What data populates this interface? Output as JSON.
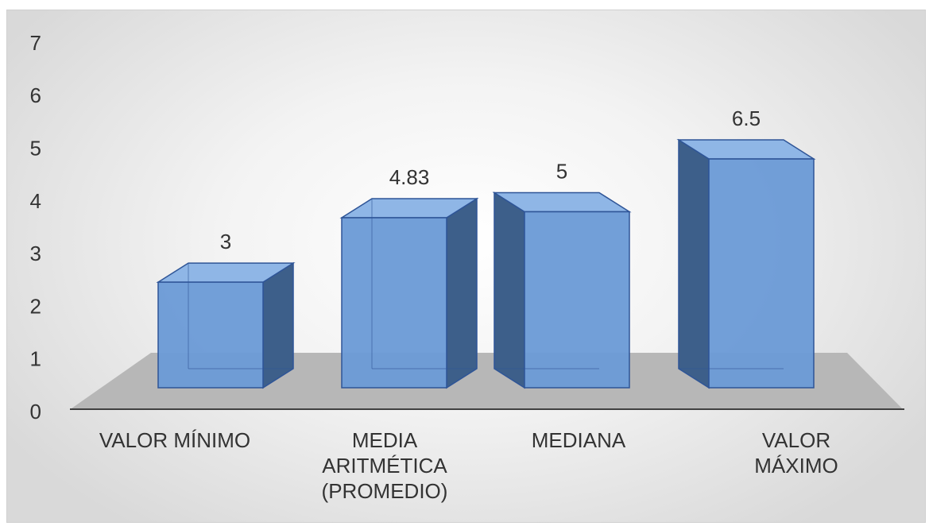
{
  "chart_data": {
    "type": "bar",
    "categories": [
      [
        "VALOR MÍNIMO"
      ],
      [
        "MEDIA",
        "ARITMÉTICA",
        "(PROMEDIO)"
      ],
      [
        "MEDIANA"
      ],
      [
        "VALOR",
        "MÁXIMO"
      ]
    ],
    "values": [
      3,
      4.83,
      5,
      6.5
    ],
    "data_labels": [
      "3",
      "4.83",
      "5",
      "6.5"
    ],
    "title": "",
    "xlabel": "",
    "ylabel": "",
    "ylim": [
      0,
      7
    ],
    "yticks": [
      "0",
      "1",
      "2",
      "3",
      "4",
      "5",
      "6",
      "7"
    ],
    "style": "3d-column",
    "grid": false,
    "legend": "none",
    "colors": {
      "bar_front": "#6a9ad6",
      "bar_top": "#8fb6e6",
      "bar_side": "#3d5f8a",
      "bar_stroke": "#2f5597",
      "floor": "#b7b7b7",
      "axis": "#404040"
    }
  }
}
